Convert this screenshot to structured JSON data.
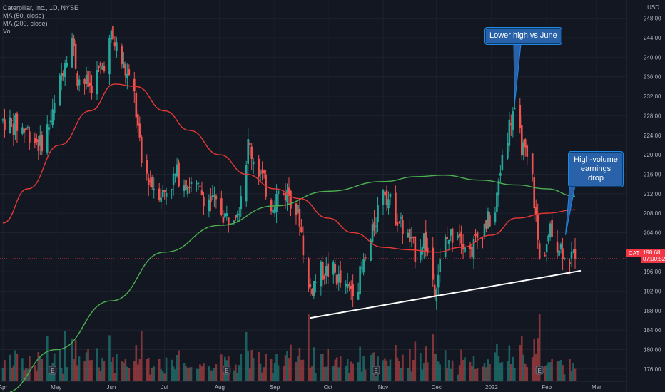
{
  "legend": {
    "symbol": "Caterpillar, Inc., 1D, NYSE",
    "ma50": "MA (50, close)",
    "ma200": "MA (200, close)",
    "vol": "Vol"
  },
  "currency": "USD",
  "price_badge": {
    "ticker": "CAT",
    "price": "198.68",
    "countdown": "07:00:52"
  },
  "colors": {
    "up": "#26a69a",
    "down": "#ef5350",
    "ma50": "#e53935",
    "ma200": "#4caf50",
    "trendline": "#ffffff",
    "callout": "#2962a8",
    "background": "#131722"
  },
  "chart_data": {
    "type": "candlestick",
    "x_tick_labels": [
      "Apr",
      "May",
      "Jun",
      "Jul",
      "Aug",
      "Sep",
      "Oct",
      "Nov",
      "Dec",
      "2022",
      "Feb",
      "Mar"
    ],
    "y_tick_labels": [
      176,
      180,
      184,
      188,
      192,
      196,
      200,
      204,
      208,
      212,
      216,
      220,
      224,
      228,
      232,
      236,
      240,
      244,
      248
    ],
    "ylim": [
      173.5,
      250
    ],
    "last_price": 198.68,
    "annotations": [
      {
        "text": "Lower high vs June",
        "date": "2022-01-14",
        "price": 230.5
      },
      {
        "text": "High-volume earnings drop",
        "date": "2022-02-14",
        "price": 211.5
      }
    ],
    "trendline": {
      "start": {
        "date": "2021-09-21",
        "price": 186.5
      },
      "end": {
        "date": "2022-02-17",
        "price": 196.5
      }
    },
    "candle_anchors": [
      [
        "2021-04-01",
        227
      ],
      [
        "2021-04-08",
        226
      ],
      [
        "2021-04-15",
        225
      ],
      [
        "2021-04-22",
        222
      ],
      [
        "2021-04-29",
        228
      ],
      [
        "2021-05-06",
        240
      ],
      [
        "2021-05-10",
        244
      ],
      [
        "2021-05-13",
        236
      ],
      [
        "2021-05-20",
        234
      ],
      [
        "2021-05-27",
        238
      ],
      [
        "2021-06-01",
        244
      ],
      [
        "2021-06-04",
        242
      ],
      [
        "2021-06-08",
        238
      ],
      [
        "2021-06-14",
        232
      ],
      [
        "2021-06-18",
        218
      ],
      [
        "2021-06-24",
        214
      ],
      [
        "2021-06-30",
        212
      ],
      [
        "2021-07-08",
        216
      ],
      [
        "2021-07-15",
        214
      ],
      [
        "2021-07-22",
        212
      ],
      [
        "2021-07-29",
        210
      ],
      [
        "2021-08-05",
        207
      ],
      [
        "2021-08-12",
        210
      ],
      [
        "2021-08-17",
        222
      ],
      [
        "2021-08-24",
        216
      ],
      [
        "2021-08-30",
        210
      ],
      [
        "2021-09-03",
        212
      ],
      [
        "2021-09-09",
        212
      ],
      [
        "2021-09-15",
        207
      ],
      [
        "2021-09-20",
        192
      ],
      [
        "2021-09-27",
        196
      ],
      [
        "2021-10-04",
        196
      ],
      [
        "2021-10-11",
        192
      ],
      [
        "2021-10-18",
        194
      ],
      [
        "2021-10-25",
        202
      ],
      [
        "2021-11-01",
        214
      ],
      [
        "2021-11-05",
        210
      ],
      [
        "2021-11-12",
        205
      ],
      [
        "2021-11-19",
        200
      ],
      [
        "2021-11-24",
        203
      ],
      [
        "2021-11-30",
        193
      ],
      [
        "2021-12-06",
        202
      ],
      [
        "2021-12-13",
        205
      ],
      [
        "2021-12-20",
        200
      ],
      [
        "2021-12-27",
        205
      ],
      [
        "2022-01-03",
        208
      ],
      [
        "2022-01-07",
        220
      ],
      [
        "2022-01-13",
        229
      ],
      [
        "2022-01-18",
        222
      ],
      [
        "2022-01-24",
        215
      ],
      [
        "2022-01-28",
        198
      ],
      [
        "2022-02-03",
        204
      ],
      [
        "2022-02-09",
        201
      ],
      [
        "2022-02-14",
        199
      ],
      [
        "2022-02-17",
        198.68
      ]
    ],
    "ma50_points": [
      [
        "2021-04-01",
        206
      ],
      [
        "2021-04-15",
        213
      ],
      [
        "2021-05-03",
        222
      ],
      [
        "2021-05-20",
        229
      ],
      [
        "2021-06-03",
        234.5
      ],
      [
        "2021-06-15",
        234
      ],
      [
        "2021-07-01",
        229
      ],
      [
        "2021-07-15",
        225
      ],
      [
        "2021-08-01",
        220
      ],
      [
        "2021-08-16",
        216
      ],
      [
        "2021-09-01",
        213
      ],
      [
        "2021-09-15",
        211
      ],
      [
        "2021-10-01",
        207
      ],
      [
        "2021-10-15",
        204
      ],
      [
        "2021-11-01",
        201
      ],
      [
        "2021-11-15",
        200.5
      ],
      [
        "2021-12-01",
        200
      ],
      [
        "2021-12-15",
        201
      ],
      [
        "2022-01-01",
        203.5
      ],
      [
        "2022-01-15",
        207
      ],
      [
        "2022-02-01",
        208
      ],
      [
        "2022-02-17",
        208.7
      ]
    ],
    "ma200_points": [
      [
        "2021-04-01",
        171
      ],
      [
        "2021-05-01",
        180
      ],
      [
        "2021-06-01",
        190
      ],
      [
        "2021-07-01",
        200
      ],
      [
        "2021-08-01",
        205.5
      ],
      [
        "2021-09-01",
        209.5
      ],
      [
        "2021-10-01",
        212.5
      ],
      [
        "2021-11-01",
        214.5
      ],
      [
        "2021-11-20",
        215.5
      ],
      [
        "2021-12-05",
        215.8
      ],
      [
        "2021-12-25",
        214.8
      ],
      [
        "2022-01-15",
        213.8
      ],
      [
        "2022-02-01",
        213
      ],
      [
        "2022-02-17",
        211.5
      ]
    ]
  }
}
